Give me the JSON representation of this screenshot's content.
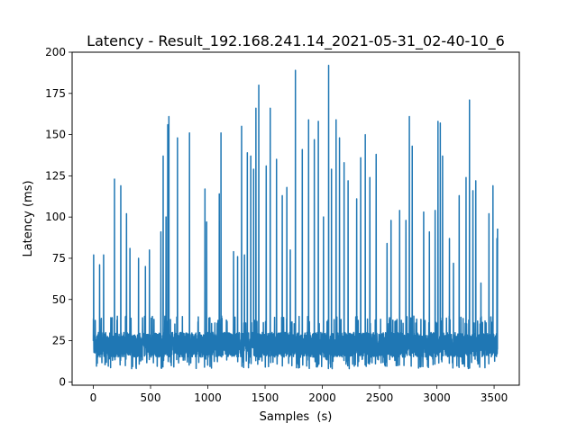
{
  "chart_data": {
    "type": "line",
    "title": "Latency - Result_192.168.241.14_2021-05-31_02-40-10_6",
    "xlabel": "Samples  (s)",
    "ylabel": "Latency (ms)",
    "xlim": [
      -185,
      3720
    ],
    "ylim": [
      -2,
      200
    ],
    "xticks": [
      0,
      500,
      1000,
      1500,
      2000,
      2500,
      3000,
      3500
    ],
    "yticks": [
      0,
      25,
      50,
      75,
      100,
      125,
      150,
      175,
      200
    ],
    "grid": false,
    "legend": "none",
    "line_color": "#1f77b4",
    "baseline": {
      "typical_range": [
        15,
        35
      ],
      "min_observed": 8,
      "sample_count": 3531
    },
    "spikes": [
      {
        "x": 3,
        "y": 77
      },
      {
        "x": 55,
        "y": 71
      },
      {
        "x": 90,
        "y": 77
      },
      {
        "x": 185,
        "y": 123
      },
      {
        "x": 240,
        "y": 119
      },
      {
        "x": 290,
        "y": 102
      },
      {
        "x": 320,
        "y": 81
      },
      {
        "x": 395,
        "y": 75
      },
      {
        "x": 455,
        "y": 70
      },
      {
        "x": 490,
        "y": 80
      },
      {
        "x": 590,
        "y": 91
      },
      {
        "x": 610,
        "y": 137
      },
      {
        "x": 635,
        "y": 100
      },
      {
        "x": 650,
        "y": 156
      },
      {
        "x": 660,
        "y": 161
      },
      {
        "x": 735,
        "y": 148
      },
      {
        "x": 840,
        "y": 151
      },
      {
        "x": 975,
        "y": 117
      },
      {
        "x": 990,
        "y": 97
      },
      {
        "x": 1100,
        "y": 114
      },
      {
        "x": 1115,
        "y": 151
      },
      {
        "x": 1225,
        "y": 79
      },
      {
        "x": 1260,
        "y": 76
      },
      {
        "x": 1295,
        "y": 155
      },
      {
        "x": 1320,
        "y": 77
      },
      {
        "x": 1345,
        "y": 139
      },
      {
        "x": 1375,
        "y": 137
      },
      {
        "x": 1400,
        "y": 129
      },
      {
        "x": 1420,
        "y": 166
      },
      {
        "x": 1445,
        "y": 180
      },
      {
        "x": 1510,
        "y": 131
      },
      {
        "x": 1545,
        "y": 166
      },
      {
        "x": 1600,
        "y": 135
      },
      {
        "x": 1650,
        "y": 113
      },
      {
        "x": 1690,
        "y": 118
      },
      {
        "x": 1720,
        "y": 80
      },
      {
        "x": 1765,
        "y": 189
      },
      {
        "x": 1825,
        "y": 141
      },
      {
        "x": 1880,
        "y": 159
      },
      {
        "x": 1930,
        "y": 147
      },
      {
        "x": 1965,
        "y": 158
      },
      {
        "x": 2010,
        "y": 100
      },
      {
        "x": 2055,
        "y": 192
      },
      {
        "x": 2080,
        "y": 129
      },
      {
        "x": 2120,
        "y": 159
      },
      {
        "x": 2150,
        "y": 148
      },
      {
        "x": 2190,
        "y": 133
      },
      {
        "x": 2225,
        "y": 122
      },
      {
        "x": 2300,
        "y": 111
      },
      {
        "x": 2335,
        "y": 136
      },
      {
        "x": 2375,
        "y": 150
      },
      {
        "x": 2415,
        "y": 124
      },
      {
        "x": 2470,
        "y": 138
      },
      {
        "x": 2565,
        "y": 84
      },
      {
        "x": 2600,
        "y": 98
      },
      {
        "x": 2675,
        "y": 104
      },
      {
        "x": 2730,
        "y": 98
      },
      {
        "x": 2760,
        "y": 161
      },
      {
        "x": 2785,
        "y": 143
      },
      {
        "x": 2885,
        "y": 103
      },
      {
        "x": 2935,
        "y": 91
      },
      {
        "x": 2985,
        "y": 104
      },
      {
        "x": 3010,
        "y": 158
      },
      {
        "x": 3030,
        "y": 157
      },
      {
        "x": 3050,
        "y": 137
      },
      {
        "x": 3110,
        "y": 87
      },
      {
        "x": 3145,
        "y": 72
      },
      {
        "x": 3195,
        "y": 113
      },
      {
        "x": 3255,
        "y": 124
      },
      {
        "x": 3285,
        "y": 171
      },
      {
        "x": 3315,
        "y": 116
      },
      {
        "x": 3340,
        "y": 122
      },
      {
        "x": 3385,
        "y": 60
      },
      {
        "x": 3455,
        "y": 102
      },
      {
        "x": 3490,
        "y": 119
      },
      {
        "x": 3525,
        "y": 87
      },
      {
        "x": 3540,
        "y": 93
      }
    ]
  }
}
